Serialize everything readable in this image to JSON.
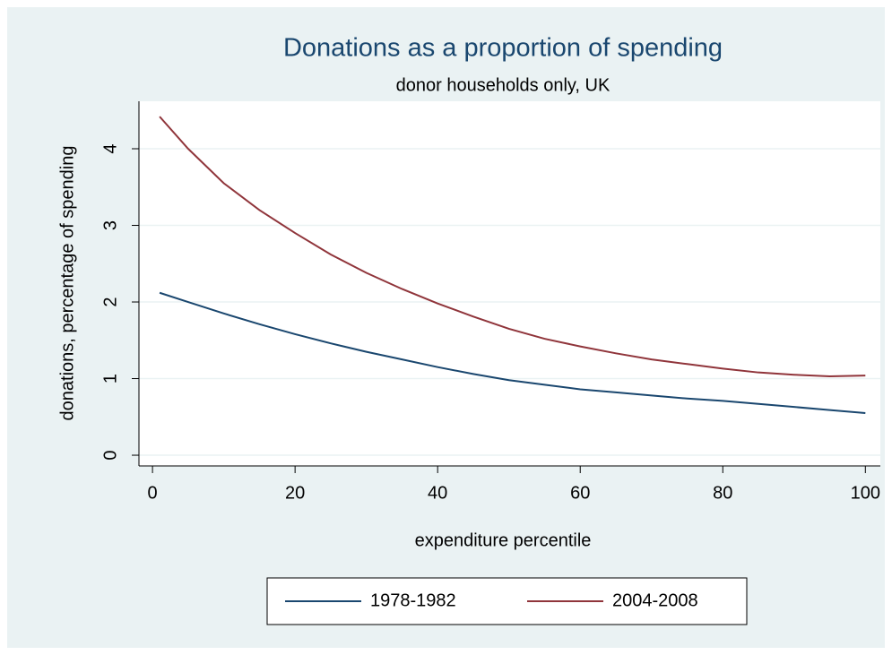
{
  "chart_data": {
    "type": "line",
    "title": "Donations as a proportion of spending",
    "subtitle": "donor households only, UK",
    "x_label": "expenditure percentile",
    "y_label": "donations, percentage of spending",
    "series": [
      {
        "name": "1978-1982",
        "color": "#1a476f",
        "x": [
          1,
          5,
          10,
          15,
          20,
          25,
          30,
          35,
          40,
          45,
          50,
          55,
          60,
          65,
          70,
          75,
          80,
          85,
          90,
          95,
          100
        ],
        "values": [
          2.12,
          2.0,
          1.85,
          1.71,
          1.58,
          1.46,
          1.35,
          1.25,
          1.15,
          1.06,
          0.98,
          0.92,
          0.86,
          0.82,
          0.78,
          0.74,
          0.71,
          0.67,
          0.63,
          0.59,
          0.55
        ]
      },
      {
        "name": "2004-2008",
        "color": "#90353b",
        "x": [
          1,
          5,
          10,
          15,
          20,
          25,
          30,
          35,
          40,
          45,
          50,
          55,
          60,
          65,
          70,
          75,
          80,
          85,
          90,
          95,
          100
        ],
        "values": [
          4.42,
          4.0,
          3.55,
          3.2,
          2.9,
          2.62,
          2.38,
          2.17,
          1.98,
          1.81,
          1.65,
          1.52,
          1.42,
          1.33,
          1.25,
          1.19,
          1.13,
          1.08,
          1.05,
          1.03,
          1.04
        ]
      }
    ],
    "xlim": [
      -1.9,
      102.1
    ],
    "xticks": [
      0,
      20,
      40,
      60,
      80,
      100
    ],
    "ylim": [
      -0.14,
      4.62
    ],
    "yticks": [
      0,
      1,
      2,
      3,
      4
    ],
    "grid": true,
    "legend": "bottom"
  }
}
